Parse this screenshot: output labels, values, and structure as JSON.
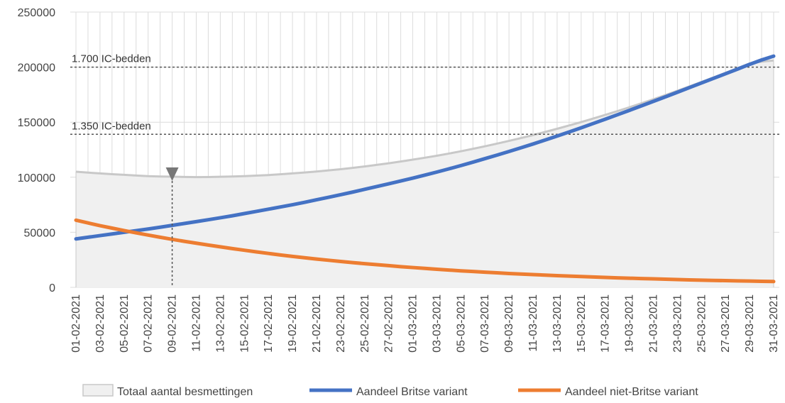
{
  "chart_data": {
    "type": "area",
    "title": "",
    "xlabel": "",
    "ylabel": "",
    "ylim": [
      0,
      250000
    ],
    "yticks": [
      0,
      50000,
      100000,
      150000,
      200000,
      250000
    ],
    "ytick_labels": [
      "0",
      "50000",
      "100000",
      "150000",
      "200000",
      "250000"
    ],
    "x": [
      "01-02-2021",
      "02-02-2021",
      "03-02-2021",
      "04-02-2021",
      "05-02-2021",
      "06-02-2021",
      "07-02-2021",
      "08-02-2021",
      "09-02-2021",
      "10-02-2021",
      "11-02-2021",
      "12-02-2021",
      "13-02-2021",
      "14-02-2021",
      "15-02-2021",
      "16-02-2021",
      "17-02-2021",
      "18-02-2021",
      "19-02-2021",
      "20-02-2021",
      "21-02-2021",
      "22-02-2021",
      "23-02-2021",
      "24-02-2021",
      "25-02-2021",
      "26-02-2021",
      "27-02-2021",
      "28-02-2021",
      "01-03-2021",
      "02-03-2021",
      "03-03-2021",
      "04-03-2021",
      "05-03-2021",
      "06-03-2021",
      "07-03-2021",
      "08-03-2021",
      "09-03-2021",
      "10-03-2021",
      "11-03-2021",
      "12-03-2021",
      "13-03-2021",
      "14-03-2021",
      "15-03-2021",
      "16-03-2021",
      "17-03-2021",
      "18-03-2021",
      "19-03-2021",
      "20-03-2021",
      "21-03-2021",
      "22-03-2021",
      "23-03-2021",
      "24-03-2021",
      "25-03-2021",
      "26-03-2021",
      "27-03-2021",
      "28-03-2021",
      "29-03-2021",
      "30-03-2021",
      "31-03-2021"
    ],
    "x_tick_labels": [
      "01-02-2021",
      "03-02-2021",
      "05-02-2021",
      "07-02-2021",
      "09-02-2021",
      "11-02-2021",
      "13-02-2021",
      "15-02-2021",
      "17-02-2021",
      "19-02-2021",
      "21-02-2021",
      "23-02-2021",
      "25-02-2021",
      "27-02-2021",
      "01-03-2021",
      "03-03-2021",
      "05-03-2021",
      "07-03-2021",
      "09-03-2021",
      "11-03-2021",
      "13-03-2021",
      "15-03-2021",
      "17-03-2021",
      "19-03-2021",
      "21-03-2021",
      "23-03-2021",
      "25-03-2021",
      "27-03-2021",
      "29-03-2021",
      "31-03-2021"
    ],
    "series": [
      {
        "name": "Totaal aantal besmettingen",
        "type": "area",
        "color": "#f0f0f0",
        "edge_color": "#c8c8c8",
        "values": [
          105000,
          104200,
          103500,
          102800,
          102200,
          101600,
          101000,
          100700,
          100500,
          100300,
          100100,
          100200,
          100400,
          100700,
          101000,
          101500,
          102000,
          102700,
          103500,
          104300,
          105200,
          106200,
          107300,
          108500,
          109800,
          111200,
          112700,
          114300,
          116000,
          117700,
          119500,
          121500,
          123600,
          125800,
          128100,
          130500,
          133000,
          135600,
          138300,
          141100,
          144000,
          147000,
          150100,
          153300,
          156600,
          160000,
          163500,
          167100,
          170800,
          174600,
          178500,
          182500,
          186500,
          190600,
          194800,
          199000,
          203300,
          205000,
          206000
        ]
      },
      {
        "name": "Aandeel Britse variant",
        "type": "line",
        "color": "#4472c4",
        "values": [
          44000,
          45500,
          47000,
          48500,
          50000,
          51500,
          53000,
          54600,
          56300,
          58000,
          59700,
          61400,
          63200,
          65000,
          67000,
          69000,
          71000,
          73000,
          75000,
          77200,
          79500,
          81800,
          84100,
          86500,
          89000,
          91500,
          94000,
          96600,
          99200,
          101900,
          104700,
          107600,
          110600,
          113700,
          116900,
          120100,
          123400,
          126800,
          130200,
          133800,
          137400,
          141100,
          144900,
          148800,
          152700,
          156700,
          160700,
          164800,
          168900,
          173000,
          177200,
          181400,
          185600,
          189800,
          194000,
          198200,
          202500,
          206500,
          210000
        ]
      },
      {
        "name": "Aandeel niet-Britse variant",
        "type": "line",
        "color": "#ed7d31",
        "values": [
          61000,
          58500,
          56000,
          53800,
          51600,
          49500,
          47500,
          45500,
          43600,
          41800,
          40100,
          38400,
          36800,
          35200,
          33700,
          32200,
          30800,
          29400,
          28100,
          26900,
          25700,
          24600,
          23500,
          22500,
          21500,
          20600,
          19700,
          18800,
          18000,
          17200,
          16400,
          15700,
          15000,
          14400,
          13800,
          13200,
          12600,
          12100,
          11600,
          11100,
          10600,
          10200,
          9800,
          9400,
          9000,
          8600,
          8300,
          8000,
          7700,
          7400,
          7100,
          6800,
          6500,
          6300,
          6100,
          5900,
          5700,
          5500,
          5300
        ]
      }
    ],
    "reference_lines": [
      {
        "label": "1.700 IC-bedden",
        "y": 200000
      },
      {
        "label": "1.350 IC-bedden",
        "y": 139000
      }
    ],
    "marker": {
      "x": "09-02-2021",
      "shape": "down-triangle"
    },
    "grid": true,
    "legend_position": "bottom"
  }
}
